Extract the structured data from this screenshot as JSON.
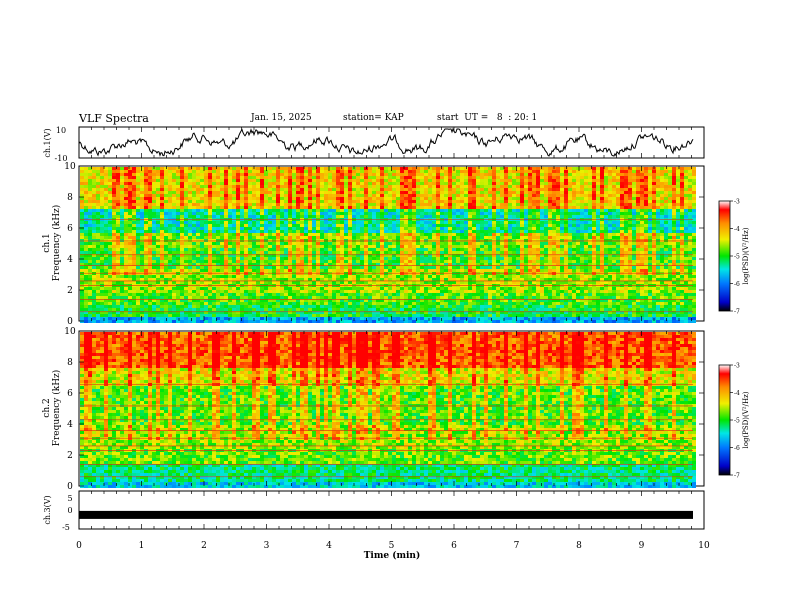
{
  "header": {
    "title": "VLF Spectra",
    "date": "Jan. 15, 2025",
    "station": "station= KAP",
    "start": "start  UT =   8  : 20: 1"
  },
  "chart_data": [
    {
      "type": "line",
      "panel": "ch1-waveform",
      "ylabel": "ch.1(V)",
      "ylim": [
        -10,
        10
      ],
      "yticks": [
        "10",
        "-10"
      ],
      "xlim": [
        0,
        10
      ],
      "line_color": "#000000"
    },
    {
      "type": "heatmap",
      "panel": "ch1-spectrogram",
      "ylabel_top": "ch.1",
      "ylabel": "Frequency  (kHz)",
      "ylim": [
        0,
        10
      ],
      "yticks": [
        "0",
        "2",
        "4",
        "6",
        "8",
        "10"
      ],
      "xlim": [
        0,
        9.85
      ],
      "colorbar": {
        "label": "log(PSD)(V²/Hz)",
        "range": [
          -7,
          -3
        ],
        "ticks": [
          "-3",
          "-4",
          "-5",
          "-6",
          "-7"
        ]
      }
    },
    {
      "type": "heatmap",
      "panel": "ch2-spectrogram",
      "ylabel_top": "ch.2",
      "ylabel": "Frequency  (kHz)",
      "ylim": [
        0,
        10
      ],
      "yticks": [
        "0",
        "2",
        "4",
        "6",
        "8",
        "10"
      ],
      "xlim": [
        0,
        9.85
      ],
      "colorbar": {
        "label": "log(PSD)(V²/Hz)",
        "range": [
          -7,
          -3
        ],
        "ticks": [
          "-3",
          "-4",
          "-5",
          "-6",
          "-7"
        ]
      }
    },
    {
      "type": "line",
      "panel": "ch3-waveform",
      "ylabel": "ch.3(V)",
      "ylim": [
        -5,
        5
      ],
      "yticks": [
        "5",
        "0",
        "-5"
      ],
      "xlim": [
        0,
        10
      ],
      "xlabel": "Time  (min)",
      "xticks": [
        "0",
        "1",
        "2",
        "3",
        "4",
        "5",
        "6",
        "7",
        "8",
        "9",
        "10"
      ],
      "band_level": -1.3
    }
  ]
}
